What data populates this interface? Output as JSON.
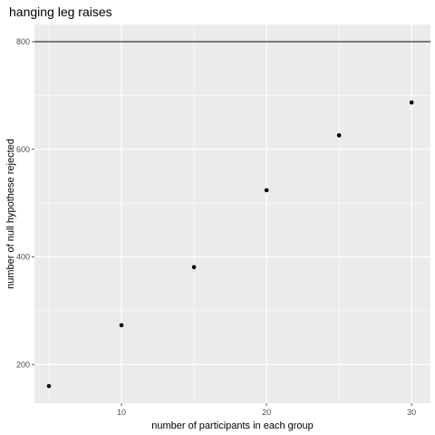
{
  "chart_data": {
    "type": "scatter",
    "title": "hanging leg raises",
    "xlabel": "number of participants in each group",
    "ylabel": "number of null hypothese rejected",
    "x": [
      5,
      10,
      15,
      20,
      25,
      30
    ],
    "y": [
      160,
      273,
      381,
      524,
      626,
      687
    ],
    "xlim": [
      4,
      31.3
    ],
    "ylim": [
      128,
      832
    ],
    "x_ticks": [
      10,
      20,
      30
    ],
    "x_tick_labels": [
      "10",
      "20",
      "30"
    ],
    "x_minor_ticks": [
      5,
      15,
      25
    ],
    "y_ticks": [
      200,
      400,
      600,
      800
    ],
    "y_tick_labels": [
      "200",
      "400",
      "600",
      "800"
    ],
    "y_minor_ticks": [
      300,
      500,
      700
    ],
    "reference_line": {
      "orientation": "horizontal",
      "y": 800
    },
    "grid": true,
    "colors": {
      "panel": "#ebebeb",
      "grid": "#ffffff",
      "point": "#000000",
      "reference_line": "#000000",
      "tick_text": "#4d4d4d"
    }
  }
}
